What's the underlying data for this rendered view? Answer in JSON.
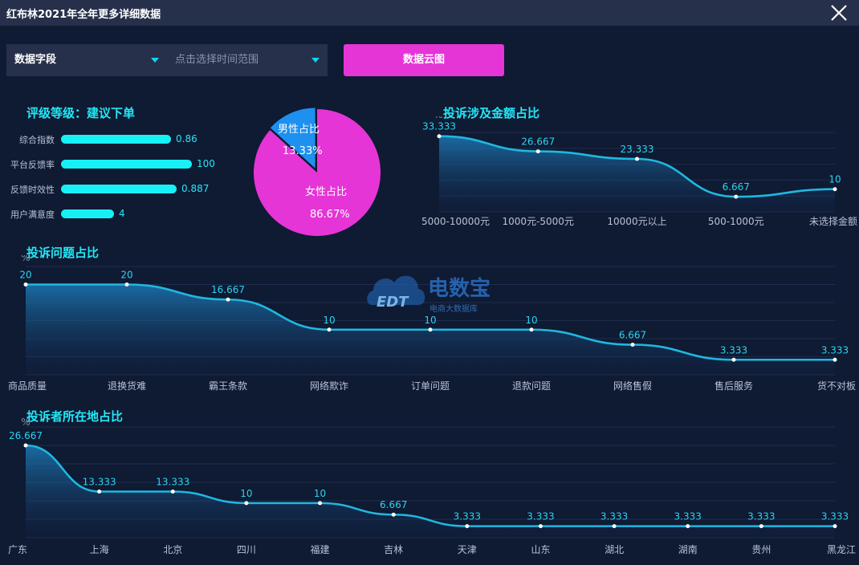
{
  "window": {
    "title": "红布林2021年全年更多详细数据"
  },
  "toolbar": {
    "field_select": "数据字段",
    "range_placeholder": "点击选择时间范围",
    "cloud_button": "数据云图"
  },
  "rating": {
    "title": "评级等级：建议下单",
    "items": [
      {
        "label": "综合指数",
        "value": "0.86",
        "fraction": 0.58
      },
      {
        "label": "平台反馈率",
        "value": "100",
        "fraction": 0.69
      },
      {
        "label": "反馈时效性",
        "value": "0.887",
        "fraction": 0.61
      },
      {
        "label": "用户满意度",
        "value": "4",
        "fraction": 0.28
      }
    ]
  },
  "gender_pie": {
    "type": "pie",
    "slices": [
      {
        "label": "男性占比",
        "value": 13.33,
        "display": "13.33%",
        "color": "#1e90f0"
      },
      {
        "label": "女性占比",
        "value": 86.67,
        "display": "86.67%",
        "color": "#e535d6"
      }
    ]
  },
  "chart_data": [
    {
      "type": "area",
      "title": "投诉涉及金额占比",
      "ylabel": "%",
      "categories": [
        "5000-10000元",
        "1000元-5000元",
        "10000元以上",
        "500-1000元",
        "未选择金额"
      ],
      "values": [
        33.333,
        26.667,
        23.333,
        6.667,
        10
      ],
      "ylim": [
        0,
        35
      ]
    },
    {
      "type": "area",
      "title": "投诉问题占比",
      "ylabel": "%",
      "categories": [
        "商品质量",
        "退换货难",
        "霸王条款",
        "网络欺诈",
        "订单问题",
        "退款问题",
        "网络售假",
        "售后服务",
        "货不对板"
      ],
      "values": [
        20,
        20,
        16.667,
        10,
        10,
        10,
        6.667,
        3.333,
        3.333
      ],
      "ylim": [
        0,
        24
      ]
    },
    {
      "type": "area",
      "title": "投诉者所在地占比",
      "ylabel": "%",
      "categories": [
        "广东",
        "上海",
        "北京",
        "四川",
        "福建",
        "吉林",
        "天津",
        "山东",
        "湖北",
        "湖南",
        "贵州",
        "黑龙江"
      ],
      "values": [
        26.667,
        13.333,
        13.333,
        10,
        10,
        6.667,
        3.333,
        3.333,
        3.333,
        3.333,
        3.333,
        3.333
      ],
      "ylim": [
        0,
        32
      ]
    }
  ],
  "watermark": {
    "brand": "电数宝",
    "subtitle": "电商大数据库",
    "logo_text": "EDT"
  }
}
